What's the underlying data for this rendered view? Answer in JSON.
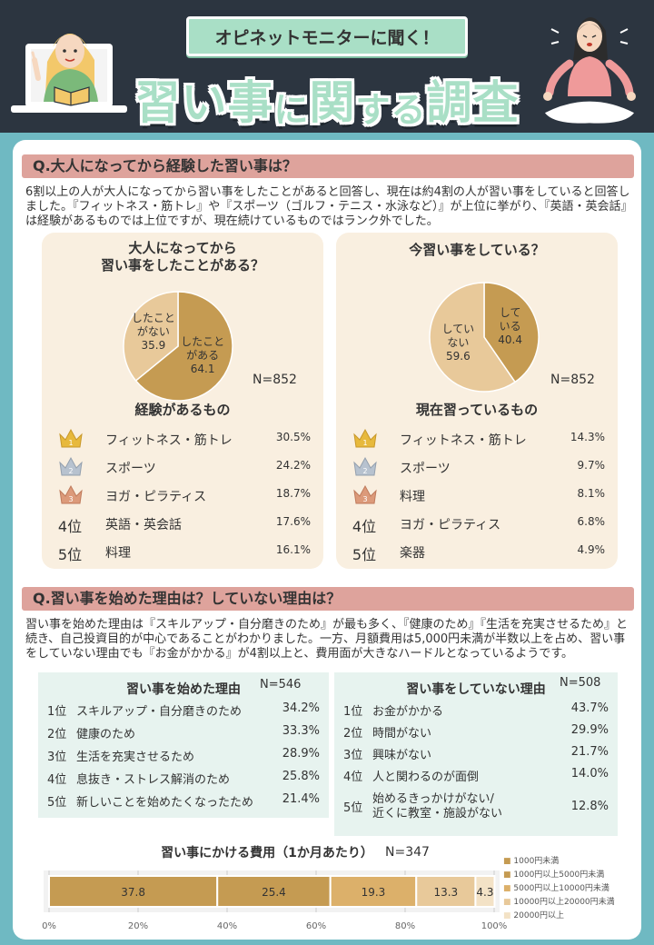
{
  "header": {
    "ribbon": "オピネットモニターに聞く！",
    "title_parts": [
      "習い事",
      "に",
      "関",
      "する",
      "調査"
    ]
  },
  "q1": {
    "heading": "Q.大人になってから経験した習い事は？",
    "paragraph": "6割以上の人が大人になってから習い事をしたことがあると回答し、現在は約4割の人が習い事をしていると回答しました。『フィットネス・筋トレ』や『スポーツ（ゴルフ・テニス・水泳など）』が上位に挙がり、『英語・英会話』は経験があるものでは上位ですが、現在続けているものではランク外でした。",
    "left": {
      "title": "大人になってから\n習い事をしたことがある？",
      "n": "N=852",
      "subhead": "経験があるもの",
      "ranks": [
        {
          "rank": "",
          "name": "フィットネス・筋トレ",
          "pct": "30.5%"
        },
        {
          "rank": "",
          "name": "スポーツ",
          "pct": "24.2%"
        },
        {
          "rank": "",
          "name": "ヨガ・ピラティス",
          "pct": "18.7%"
        },
        {
          "rank": "4位",
          "name": "英語・英会話",
          "pct": "17.6%"
        },
        {
          "rank": "5位",
          "name": "料理",
          "pct": "16.1%"
        }
      ]
    },
    "right": {
      "title": "今習い事をしている？",
      "n": "N=852",
      "subhead": "現在習っているもの",
      "ranks": [
        {
          "rank": "",
          "name": "フィットネス・筋トレ",
          "pct": "14.3%"
        },
        {
          "rank": "",
          "name": "スポーツ",
          "pct": "9.7%"
        },
        {
          "rank": "",
          "name": "料理",
          "pct": "8.1%"
        },
        {
          "rank": "4位",
          "name": "ヨガ・ピラティス",
          "pct": "6.8%"
        },
        {
          "rank": "5位",
          "name": "楽器",
          "pct": "4.9%"
        }
      ]
    }
  },
  "q2": {
    "heading": "Q.習い事を始めた理由は？していない理由は？",
    "paragraph": "習い事を始めた理由は『スキルアップ・自分磨きのため』が最も多く、『健康のため』『生活を充実させるため』と続き、自己投資目的が中心であることがわかりました。一方、月額費用は5,000円未満が半数以上を占め、習い事をしていない理由でも『お金がかかる』が4割以上と、費用面が大きなハードルとなっているようです。",
    "start": {
      "title": "習い事を始めた理由",
      "n": "N=546",
      "rows": [
        {
          "rank": "1位",
          "name": "スキルアップ・自分磨きのため",
          "pct": "34.2%"
        },
        {
          "rank": "2位",
          "name": "健康のため",
          "pct": "33.3%"
        },
        {
          "rank": "3位",
          "name": "生活を充実させるため",
          "pct": "28.9%"
        },
        {
          "rank": "4位",
          "name": "息抜き・ストレス解消のため",
          "pct": "25.8%"
        },
        {
          "rank": "5位",
          "name": "新しいことを始めたくなったため",
          "pct": "21.4%"
        }
      ]
    },
    "not": {
      "title": "習い事をしていない理由",
      "n": "N=508",
      "rows": [
        {
          "rank": "1位",
          "name": "お金がかかる",
          "pct": "43.7%"
        },
        {
          "rank": "2位",
          "name": "時間がない",
          "pct": "29.9%"
        },
        {
          "rank": "3位",
          "name": "興味がない",
          "pct": "21.7%"
        },
        {
          "rank": "4位",
          "name": "人と関わるのが面倒",
          "pct": "14.0%"
        },
        {
          "rank": "5位",
          "name": "始めるきっかけがない/\n近くに教室・施設がない",
          "pct": "12.8%"
        }
      ]
    }
  },
  "colors": {
    "dark": "#2c3540",
    "teal": "#6fb9c2",
    "mint": "#a9dfc6",
    "rose": "#dea39c",
    "cream": "#f9efe0",
    "gold_dark": "#c59b52",
    "gold_light": "#e8c99a"
  },
  "chart_data": [
    {
      "type": "pie",
      "title": "大人になってから習い事をしたことがある？",
      "n": "N=852",
      "slices": [
        {
          "label": "したことがある",
          "value": 64.1,
          "color": "#c59b52"
        },
        {
          "label": "したことがない",
          "value": 35.9,
          "color": "#e8c99a"
        }
      ]
    },
    {
      "type": "pie",
      "title": "今習い事をしている？",
      "n": "N=852",
      "slices": [
        {
          "label": "している",
          "value": 40.4,
          "color": "#c59b52"
        },
        {
          "label": "していない",
          "value": 59.6,
          "color": "#e8c99a"
        }
      ]
    },
    {
      "type": "bar",
      "orientation": "horizontal-stacked",
      "title": "習い事にかける費用（1か月あたり）",
      "n": "N=347",
      "series": [
        {
          "name": "1000円未満",
          "value": 37.8,
          "color": "#c59b52"
        },
        {
          "name": "1000円以上5000円未満",
          "value": 25.4,
          "color": "#c59b52"
        },
        {
          "name": "5000円以上10000円未満",
          "value": 19.3,
          "color": "#dcb06a"
        },
        {
          "name": "10000円以上20000円未満",
          "value": 13.3,
          "color": "#e8c99a"
        },
        {
          "name": "20000円以上",
          "value": 4.3,
          "color": "#f3e2c6"
        }
      ],
      "xlim": [
        0,
        100
      ],
      "ticks": [
        "0%",
        "20%",
        "40%",
        "60%",
        "80%",
        "100%"
      ]
    }
  ]
}
